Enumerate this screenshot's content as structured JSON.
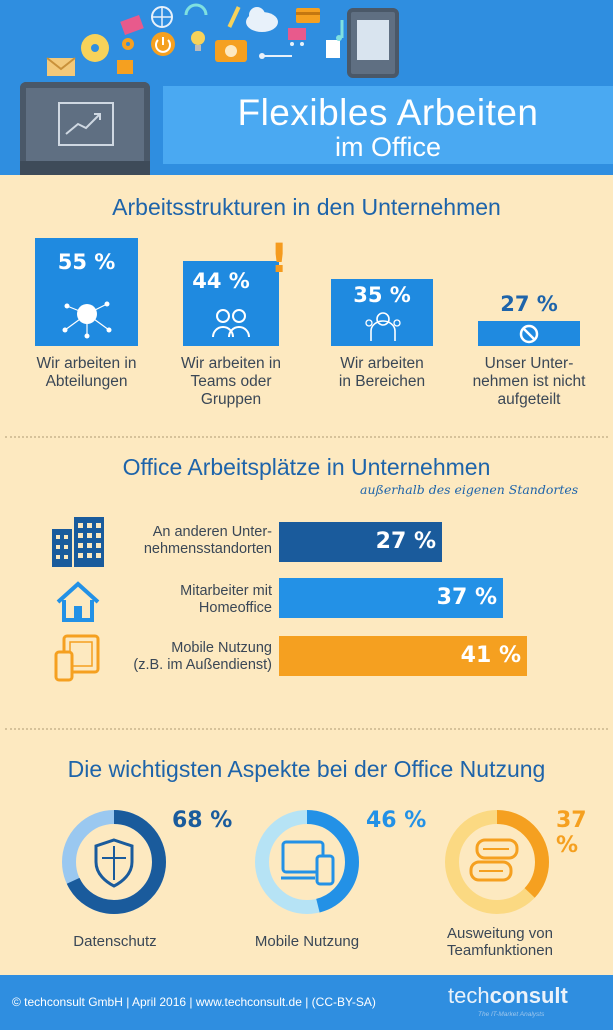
{
  "header": {
    "title_line1": "Flexibles Arbeiten",
    "title_line2": "im Office"
  },
  "section1": {
    "title": "Arbeitsstrukturen in den Unternehmen",
    "items": [
      {
        "pct": "55 %",
        "label": "Wir arbeiten in\nAbteilungen",
        "icon": "network-icon"
      },
      {
        "pct": "44 %",
        "label": "Wir arbeiten in\nTeams oder\nGruppen",
        "icon": "team-icon"
      },
      {
        "pct": "35 %",
        "label": "Wir arbeiten\nin Bereichen",
        "icon": "group-icon"
      },
      {
        "pct": "27 %",
        "label": "Unser Unter-\nnehmen ist nicht\naufgeteilt",
        "icon": "prohibited-icon"
      }
    ]
  },
  "section2": {
    "title": "Office Arbeitsplätze in Unternehmen",
    "subtitle": "außerhalb des eigenen Standortes",
    "bars": [
      {
        "label": "An anderen Unter-\nnehmensstandorten",
        "value": "27 %",
        "color": "#1a5b9c",
        "icon": "office-building-icon"
      },
      {
        "label": "Mitarbeiter mit\nHomeoffice",
        "value": "37 %",
        "color": "#2391e6",
        "icon": "house-icon"
      },
      {
        "label": "Mobile Nutzung\n(z.B. im Außendienst)",
        "value": "41 %",
        "color": "#f5a020",
        "icon": "mobile-devices-icon"
      }
    ]
  },
  "section3": {
    "title": "Die wichtigsten Aspekte bei der Office Nutzung",
    "donuts": [
      {
        "pct": "68 %",
        "label": "Datenschutz",
        "color": "#1a5b9c",
        "track": "#9ac8f0",
        "icon": "shield-icon"
      },
      {
        "pct": "46 %",
        "label": "Mobile Nutzung",
        "color": "#2391e6",
        "track": "#b6e3f5",
        "icon": "devices-icon"
      },
      {
        "pct": "37 %",
        "label": "Ausweitung von\nTeamfunktionen",
        "color": "#f5a020",
        "track": "#fbd982",
        "icon": "chat-icon"
      }
    ]
  },
  "footer": {
    "text": "© techconsult GmbH | April 2016 | www.techconsult.de | (CC-BY-SA)",
    "logo_lead": "tech",
    "logo_bold": "consult",
    "tagline": "The IT-Market Analysts"
  },
  "chart_data": [
    {
      "type": "bar",
      "title": "Arbeitsstrukturen in den Unternehmen",
      "categories": [
        "Wir arbeiten in Abteilungen",
        "Wir arbeiten in Teams oder Gruppen",
        "Wir arbeiten in Bereichen",
        "Unser Unternehmen ist nicht aufgeteilt"
      ],
      "values": [
        55,
        44,
        35,
        27
      ]
    },
    {
      "type": "bar",
      "title": "Office Arbeitsplätze in Unternehmen",
      "categories": [
        "An anderen Unternehmensstandorten",
        "Mitarbeiter mit Homeoffice",
        "Mobile Nutzung (z.B. im Außendienst)"
      ],
      "values": [
        27,
        37,
        41
      ]
    },
    {
      "type": "pie",
      "title": "Die wichtigsten Aspekte bei der Office Nutzung",
      "categories": [
        "Datenschutz",
        "Mobile Nutzung",
        "Ausweitung von Teamfunktionen"
      ],
      "values": [
        68,
        46,
        37
      ]
    }
  ]
}
